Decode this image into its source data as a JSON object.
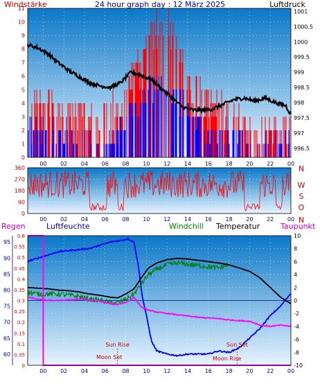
{
  "header": {
    "left_label": "Windstärke",
    "title": "24 hour graph day : 12 März 2025",
    "right_label": "Luftdruck"
  },
  "legend_bottom": {
    "regen": "Regen",
    "luftfeuchte": "Luftfeuchte",
    "windchill": "Windchill",
    "temperatur": "Temperatur",
    "taupunkt": "Taupunkt"
  },
  "colors": {
    "panel_top": "#0b78c8",
    "panel_bottom": "#e8f4ff",
    "windspeed": "#ff0000",
    "windgust": "#0000ff",
    "pressure": "#000000",
    "winddir": "#ff0000",
    "temperature": "#000000",
    "windchill": "#008000",
    "dewpoint": "#ff00ff",
    "humidity": "#0000ff",
    "rain": "#ff00ff",
    "axis_left_red": "#cc0000",
    "axis_blue": "#0000aa"
  },
  "chart_data": [
    {
      "type": "bar",
      "name": "Wind and Pressure",
      "x_ticks": [
        "00",
        "02",
        "04",
        "06",
        "08",
        "10",
        "12",
        "14",
        "16",
        "18",
        "20",
        "22",
        "00"
      ],
      "xlim": [
        -1.5,
        24
      ],
      "left_axis": {
        "ticks": [
          "0",
          "1",
          "2",
          "3",
          "4",
          "5",
          "6",
          "7",
          "8",
          "9",
          "10",
          "11"
        ],
        "ylim": [
          0,
          11
        ]
      },
      "right_axis": {
        "ticks": [
          "996.5",
          "997",
          "997.5",
          "998",
          "998.5",
          "999",
          "999.5",
          "1000",
          "1000.5",
          "1001"
        ],
        "ylim": [
          996.2,
          1001.1
        ]
      },
      "pressure_key": {
        "x": [
          -1.5,
          -0.5,
          0.5,
          1.5,
          2.5,
          3.5,
          4.5,
          5.5,
          6.5,
          7.5,
          8.5,
          9.5,
          10.5,
          11.5,
          12.5,
          13.5,
          14.5,
          15.5,
          16.5,
          17.5,
          18.5,
          19.5,
          20.5,
          21.5,
          22.5,
          23.5,
          24
        ],
        "y": [
          999.9,
          999.8,
          999.6,
          999.3,
          999.05,
          998.85,
          998.65,
          998.55,
          998.5,
          998.65,
          999.0,
          998.9,
          998.75,
          998.45,
          998.15,
          997.85,
          997.75,
          997.75,
          997.8,
          997.95,
          998.1,
          998.15,
          998.05,
          998.15,
          998.0,
          997.9,
          997.6
        ]
      },
      "wind_key": {
        "hours": [
          -1.5,
          0,
          2,
          4,
          6,
          7.5,
          8.5,
          9.5,
          10.5,
          11.5,
          12.5,
          13.5,
          14.5,
          16,
          18,
          20,
          22,
          24
        ],
        "speed_level": [
          4,
          4,
          3,
          3,
          3,
          4,
          6,
          7,
          9,
          10,
          9,
          7,
          5,
          4,
          3,
          2,
          2,
          2
        ],
        "gust_level": [
          2,
          2,
          2,
          1,
          1,
          2,
          3,
          4,
          5,
          5,
          5,
          4,
          3,
          2,
          2,
          1,
          1,
          1
        ]
      }
    },
    {
      "type": "line",
      "name": "Wind Direction",
      "x_ticks": [
        "00",
        "02",
        "04",
        "06",
        "08",
        "10",
        "12",
        "14",
        "16",
        "18",
        "20",
        "22",
        "00"
      ],
      "xlim": [
        -1.5,
        24
      ],
      "y_ticks": [
        "0",
        "90",
        "180",
        "270",
        "360"
      ],
      "ylim": [
        0,
        360
      ],
      "right_labels": [
        "N",
        "W",
        "S",
        "O",
        "N"
      ]
    },
    {
      "type": "line",
      "name": "Temperature and Humidity",
      "x_ticks": [
        "00",
        "02",
        "04",
        "06",
        "08",
        "10",
        "12",
        "14",
        "16",
        "18",
        "20",
        "22",
        "00"
      ],
      "xlim": [
        -1.5,
        24
      ],
      "humidity_axis": {
        "ticks": [
          "60",
          "65",
          "70",
          "75",
          "80",
          "85",
          "90",
          "95"
        ],
        "ylim": [
          56.5,
          97
        ]
      },
      "rain_axis": {
        "ticks": [
          "0",
          "0.05",
          "0.1",
          "0.15",
          "0.2",
          "0.25",
          "0.3",
          "0.35",
          "0.4",
          "0.45",
          "0.5",
          "0.55",
          "0.6"
        ],
        "ylim": [
          0,
          0.6
        ]
      },
      "temp_axis": {
        "ticks": [
          "-10",
          "-8",
          "-6",
          "-4",
          "-2",
          "0",
          "2",
          "4",
          "6",
          "8",
          "10"
        ],
        "ylim": [
          -10,
          10
        ]
      },
      "annotations": [
        "Sun Rise",
        "Moon Set",
        "Sun Set",
        "Moon Rise"
      ],
      "temperature": {
        "x": [
          -1.5,
          -0.5,
          0.5,
          1.5,
          2.5,
          3.5,
          4.5,
          5.5,
          6.5,
          7.2,
          8.0,
          8.8,
          9.5,
          10.2,
          11,
          12,
          13,
          14,
          15,
          16,
          17,
          18,
          19,
          20,
          21,
          22,
          23,
          24
        ],
        "y": [
          2.0,
          1.9,
          1.8,
          1.6,
          1.5,
          1.3,
          1.0,
          0.8,
          0.5,
          0.4,
          1.0,
          1.8,
          3.5,
          5.0,
          5.8,
          6.3,
          6.5,
          6.4,
          6.2,
          6.0,
          5.8,
          5.5,
          5.0,
          4.5,
          3.5,
          2.0,
          0.5,
          -0.5
        ]
      },
      "windchill": {
        "x": [
          -1.5,
          -0.5,
          0.5,
          1.5,
          2.5,
          3.5,
          4.5,
          5.5,
          6.5,
          7.2,
          8.0,
          8.8,
          9.5,
          10.2,
          11,
          12,
          13,
          14,
          15,
          16,
          17,
          18
        ],
        "y": [
          1.3,
          1.0,
          1.0,
          1.0,
          0.8,
          0.6,
          0.2,
          0.0,
          -0.3,
          -0.4,
          0.2,
          1.0,
          2.5,
          4.0,
          4.8,
          5.5,
          5.8,
          5.6,
          5.4,
          5.2,
          5.0,
          5.5
        ]
      },
      "dewpoint": {
        "x": [
          -1.5,
          -0.5,
          0.5,
          1.5,
          2.5,
          3.5,
          4.5,
          5.5,
          6.5,
          7.2,
          8.0,
          8.8,
          9.5,
          10.2,
          11,
          12,
          13,
          14,
          15,
          16,
          17,
          18,
          19,
          20,
          21,
          22,
          23,
          24
        ],
        "y": [
          0.5,
          0.2,
          0.0,
          0.0,
          0.1,
          0.2,
          0.1,
          -0.1,
          -0.5,
          -0.6,
          -0.3,
          0.5,
          -1.0,
          -1.5,
          -1.8,
          -2.0,
          -2.2,
          -2.4,
          -2.6,
          -2.7,
          -2.8,
          -3.0,
          -3.1,
          -3.2,
          -3.8,
          -4.0,
          -3.8,
          -4.0
        ]
      },
      "humidity": {
        "x": [
          -1.5,
          -0.5,
          0.5,
          1.5,
          3.0,
          4.5,
          5.5,
          6.5,
          7.5,
          8.2,
          8.8,
          9.2,
          9.6,
          10.0,
          10.5,
          11,
          12,
          13,
          14,
          15,
          16,
          17,
          18,
          19,
          20,
          21,
          22,
          23,
          24
        ],
        "y": [
          89,
          90,
          91,
          92,
          92.5,
          93,
          94,
          95,
          95.5,
          96,
          95,
          88,
          78,
          72,
          64,
          61,
          60,
          59.5,
          60,
          60,
          60,
          61,
          60.5,
          62,
          65,
          68,
          72,
          75,
          79
        ]
      },
      "rain": {
        "x": [
          -1.5,
          0,
          0,
          24
        ],
        "y": [
          0.6,
          0.6,
          0,
          0
        ]
      }
    }
  ]
}
